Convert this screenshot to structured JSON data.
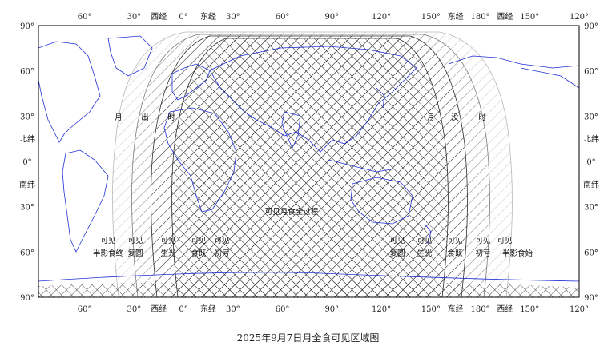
{
  "caption": "2025年9月7日月全食可见区域图",
  "axes": {
    "top_lon": [
      {
        "v": "60°",
        "lon": -60
      },
      {
        "v": "30°",
        "lon": -30
      },
      {
        "v": "西经",
        "lon": -15
      },
      {
        "v": "0°",
        "lon": 0
      },
      {
        "v": "东经",
        "lon": 15
      },
      {
        "v": "30°",
        "lon": 30
      },
      {
        "v": "60°",
        "lon": 60
      },
      {
        "v": "90°",
        "lon": 90
      },
      {
        "v": "120°",
        "lon": 120
      },
      {
        "v": "150°",
        "lon": 150
      },
      {
        "v": "东经",
        "lon": 165
      },
      {
        "v": "180°",
        "lon": 180
      },
      {
        "v": "西经",
        "lon": 195
      },
      {
        "v": "150°",
        "lon": 210
      },
      {
        "v": "120°",
        "lon": 240
      }
    ],
    "lat": [
      {
        "v": "90°",
        "lat": 90
      },
      {
        "v": "60°",
        "lat": 60
      },
      {
        "v": "30°",
        "lat": 30
      },
      {
        "v": "北纬",
        "lat": 15
      },
      {
        "v": "0°",
        "lat": 0
      },
      {
        "v": "南纬",
        "lat": -15
      },
      {
        "v": "30°",
        "lat": -30
      },
      {
        "v": "60°",
        "lat": -60
      },
      {
        "v": "90°",
        "lat": -90
      }
    ]
  },
  "labels": {
    "moonrise": [
      "月",
      "出",
      "时"
    ],
    "moonset": [
      "月",
      "没",
      "时"
    ],
    "whole_eclipse": "可见月食全过程",
    "left_bottom": [
      {
        "l1": "可见",
        "l2": "半影食终"
      },
      {
        "l1": "可见",
        "l2": "复圆"
      },
      {
        "l1": "可见",
        "l2": "生光"
      },
      {
        "l1": "可见",
        "l2": "食既"
      },
      {
        "l1": "可见",
        "l2": "初亏"
      }
    ],
    "right_bottom": [
      {
        "l1": "可见",
        "l2": "复圆"
      },
      {
        "l1": "可见",
        "l2": "生光"
      },
      {
        "l1": "可见",
        "l2": "食既"
      },
      {
        "l1": "可见",
        "l2": "初亏"
      },
      {
        "l1": "可见",
        "l2": "半影食始"
      }
    ]
  },
  "colors": {
    "coast": "#1f2fd6",
    "hatch_outer": "#b8b8b8",
    "hatch_mid": "#7a7a7a",
    "hatch_inner": "#2a2a2a",
    "frame": "#000000"
  }
}
